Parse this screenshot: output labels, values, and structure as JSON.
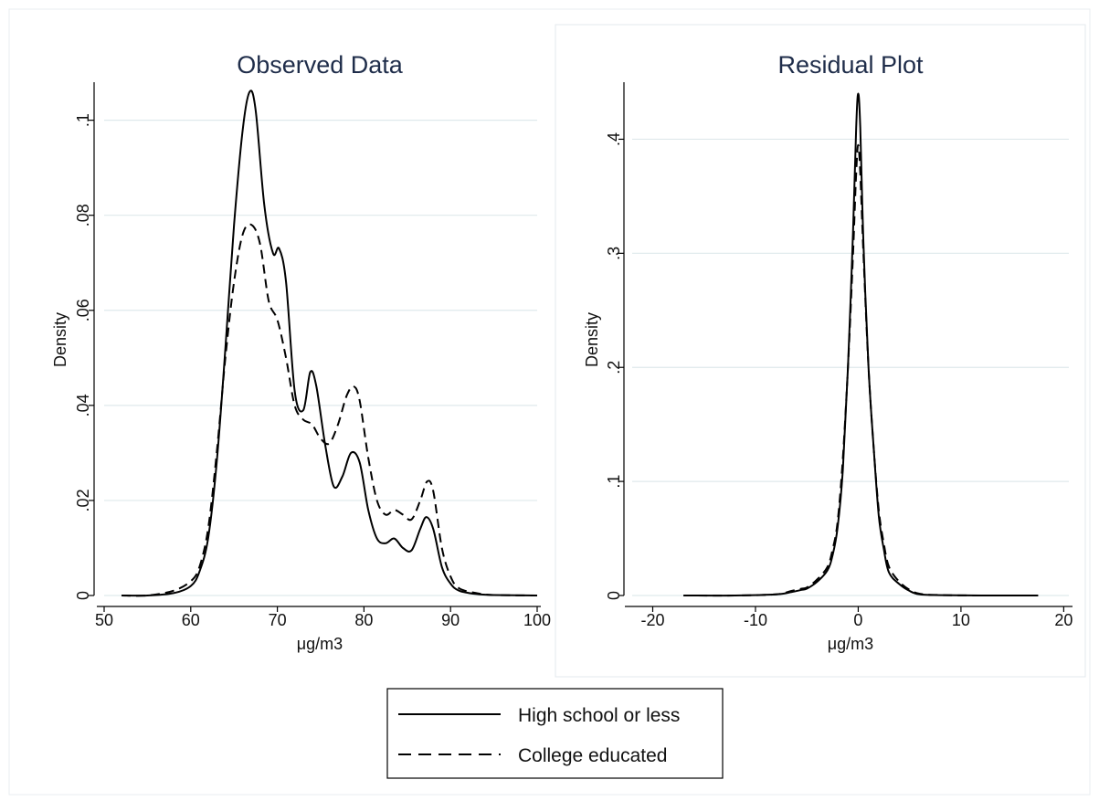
{
  "chart_data": [
    {
      "type": "line",
      "title": "Observed Data",
      "xlabel": "μg/m3",
      "ylabel": "Density",
      "xlim": [
        50,
        100
      ],
      "ylim": [
        0,
        0.108
      ],
      "x_ticks": [
        {
          "value": 50,
          "label": "50"
        },
        {
          "value": 60,
          "label": "60"
        },
        {
          "value": 70,
          "label": "70"
        },
        {
          "value": 80,
          "label": "80"
        },
        {
          "value": 90,
          "label": "90"
        },
        {
          "value": 100,
          "label": "100"
        }
      ],
      "y_ticks": [
        {
          "value": 0,
          "label": "0"
        },
        {
          "value": 0.02,
          "label": ".02"
        },
        {
          "value": 0.04,
          "label": ".04"
        },
        {
          "value": 0.06,
          "label": ".06"
        },
        {
          "value": 0.08,
          "label": ".08"
        },
        {
          "value": 0.1,
          "label": ".1"
        }
      ],
      "grid": "horizontal",
      "series": [
        {
          "name": "High school or less",
          "style": "solid",
          "x": [
            52,
            55,
            58,
            60,
            61,
            62,
            63,
            64,
            65,
            66,
            66.8,
            67.5,
            68.5,
            69.5,
            70.2,
            71,
            72,
            73,
            73.8,
            74.5,
            75.5,
            76.5,
            77.5,
            78.5,
            79.5,
            80.5,
            81.5,
            82.5,
            83.5,
            84.5,
            85.5,
            86.5,
            87.2,
            88,
            89,
            90,
            91,
            93,
            95,
            100
          ],
          "y": [
            0,
            0,
            0.0005,
            0.002,
            0.005,
            0.012,
            0.028,
            0.052,
            0.078,
            0.098,
            0.106,
            0.102,
            0.082,
            0.072,
            0.073,
            0.066,
            0.043,
            0.039,
            0.047,
            0.044,
            0.032,
            0.023,
            0.025,
            0.03,
            0.028,
            0.018,
            0.012,
            0.011,
            0.012,
            0.01,
            0.0095,
            0.014,
            0.0165,
            0.014,
            0.006,
            0.0025,
            0.001,
            0.0003,
            0.0001,
            0
          ]
        },
        {
          "name": "College educated",
          "style": "dashed",
          "x": [
            52,
            55,
            58,
            60,
            61,
            62,
            63,
            64,
            65,
            66,
            67,
            68,
            69,
            70,
            71,
            72,
            73,
            74,
            75,
            76,
            77,
            78,
            78.8,
            79.5,
            80.5,
            81.5,
            82.5,
            83.5,
            84.5,
            85.5,
            86.5,
            87.3,
            88,
            89,
            90,
            91,
            93,
            95,
            100
          ],
          "y": [
            0,
            0,
            0.001,
            0.003,
            0.006,
            0.014,
            0.03,
            0.05,
            0.066,
            0.076,
            0.078,
            0.074,
            0.062,
            0.058,
            0.05,
            0.04,
            0.037,
            0.036,
            0.033,
            0.032,
            0.036,
            0.042,
            0.044,
            0.041,
            0.029,
            0.02,
            0.017,
            0.018,
            0.017,
            0.016,
            0.02,
            0.024,
            0.022,
            0.01,
            0.004,
            0.0015,
            0.0005,
            0.0001,
            0
          ]
        }
      ]
    },
    {
      "type": "line",
      "title": "Residual Plot",
      "xlabel": "μg/m3",
      "ylabel": "Density",
      "xlim": [
        -22,
        20.5
      ],
      "ylim": [
        0,
        0.45
      ],
      "x_ticks": [
        {
          "value": -20,
          "label": "-20"
        },
        {
          "value": -10,
          "label": "-10"
        },
        {
          "value": 0,
          "label": "0"
        },
        {
          "value": 10,
          "label": "10"
        },
        {
          "value": 20,
          "label": "20"
        }
      ],
      "y_ticks": [
        {
          "value": 0,
          "label": "0"
        },
        {
          "value": 0.1,
          "label": ".1"
        },
        {
          "value": 0.2,
          "label": ".2"
        },
        {
          "value": 0.3,
          "label": ".3"
        },
        {
          "value": 0.4,
          "label": ".4"
        }
      ],
      "grid": "horizontal",
      "series": [
        {
          "name": "High school or less",
          "style": "solid",
          "x": [
            -17,
            -12,
            -8,
            -6.5,
            -5.5,
            -5,
            -4,
            -3,
            -2.5,
            -2,
            -1.5,
            -1,
            -0.5,
            -0.2,
            0,
            0.2,
            0.5,
            1,
            1.5,
            2,
            2.5,
            3,
            4,
            5,
            6,
            8,
            12,
            17.5
          ],
          "y": [
            0,
            0,
            0.001,
            0.003,
            0.005,
            0.006,
            0.012,
            0.022,
            0.035,
            0.06,
            0.11,
            0.2,
            0.32,
            0.41,
            0.44,
            0.41,
            0.31,
            0.2,
            0.13,
            0.07,
            0.04,
            0.02,
            0.01,
            0.004,
            0.001,
            0.0003,
            0,
            0
          ]
        },
        {
          "name": "College educated",
          "style": "dashed",
          "x": [
            -17,
            -12,
            -8,
            -6.5,
            -5.5,
            -5,
            -4,
            -3,
            -2.5,
            -2,
            -1.5,
            -1,
            -0.5,
            -0.2,
            0,
            0.2,
            0.5,
            1,
            1.5,
            2,
            2.5,
            3,
            4,
            5,
            6,
            8,
            12,
            17.5
          ],
          "y": [
            0,
            0,
            0.001,
            0.004,
            0.006,
            0.007,
            0.014,
            0.025,
            0.04,
            0.065,
            0.12,
            0.2,
            0.3,
            0.37,
            0.395,
            0.37,
            0.3,
            0.2,
            0.13,
            0.075,
            0.045,
            0.025,
            0.012,
            0.005,
            0.0015,
            0.0004,
            0,
            0
          ]
        }
      ]
    }
  ],
  "legend": {
    "items": [
      {
        "label": "High school or less",
        "style": "solid"
      },
      {
        "label": "College educated",
        "style": "dashed"
      }
    ]
  }
}
